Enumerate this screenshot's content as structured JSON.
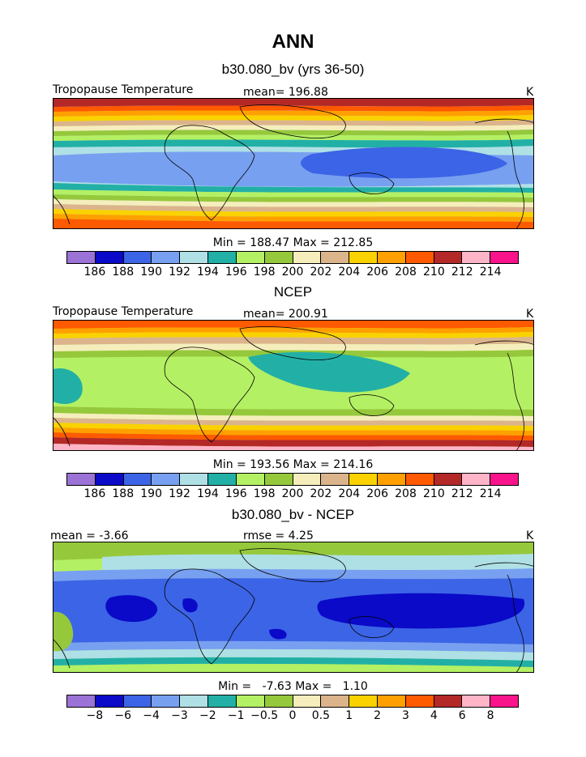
{
  "page": {
    "title": "ANN"
  },
  "panels": [
    {
      "title": "b30.080_bv (yrs 36-50)",
      "left_label": "Tropopause Temperature",
      "center_label": "mean=  196.88",
      "right_label": "K",
      "minmax": "Min = 188.47 Max = 212.85",
      "colorbar": {
        "colors": [
          "#9b72d6",
          "#0a0ac8",
          "#3c64e6",
          "#78a0f0",
          "#afe0e6",
          "#22b0a6",
          "#b4f064",
          "#96c83c",
          "#f5eebc",
          "#dcb48c",
          "#fad200",
          "#ffa000",
          "#ff5a00",
          "#b42828",
          "#ffb4c8",
          "#fa148c"
        ],
        "labels": [
          "186",
          "188",
          "190",
          "192",
          "194",
          "196",
          "198",
          "200",
          "202",
          "204",
          "206",
          "208",
          "210",
          "212",
          "214"
        ]
      }
    },
    {
      "title": "NCEP",
      "left_label": "Tropopause Temperature",
      "center_label": "mean=  200.91",
      "right_label": "K",
      "minmax": "Min = 193.56 Max = 214.16",
      "colorbar": {
        "colors": [
          "#9b72d6",
          "#0a0ac8",
          "#3c64e6",
          "#78a0f0",
          "#afe0e6",
          "#22b0a6",
          "#b4f064",
          "#96c83c",
          "#f5eebc",
          "#dcb48c",
          "#fad200",
          "#ffa000",
          "#ff5a00",
          "#b42828",
          "#ffb4c8",
          "#fa148c"
        ],
        "labels": [
          "186",
          "188",
          "190",
          "192",
          "194",
          "196",
          "198",
          "200",
          "202",
          "204",
          "206",
          "208",
          "210",
          "212",
          "214"
        ]
      }
    },
    {
      "title": "b30.080_bv - NCEP",
      "left_label": "mean =   -3.66",
      "center_label": "rmse =   4.25",
      "right_label": "K",
      "minmax": "Min =   -7.63 Max =   1.10",
      "colorbar": {
        "colors": [
          "#9b72d6",
          "#0a0ac8",
          "#3c64e6",
          "#78a0f0",
          "#afe0e6",
          "#22b0a6",
          "#b4f064",
          "#96c83c",
          "#f5eebc",
          "#dcb48c",
          "#fad200",
          "#ffa000",
          "#ff5a00",
          "#b42828",
          "#ffb4c8",
          "#fa148c"
        ],
        "labels": [
          "−8",
          "−6",
          "−4",
          "−3",
          "−2",
          "−1",
          "−0.5",
          "0",
          "0.5",
          "1",
          "2",
          "3",
          "4",
          "6",
          "8"
        ]
      }
    }
  ]
}
